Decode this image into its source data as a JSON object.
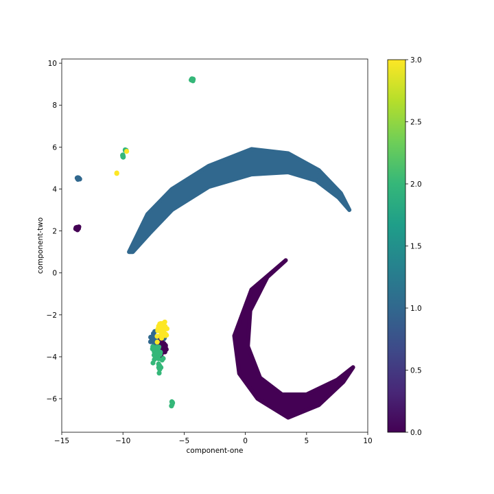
{
  "chart_data": {
    "type": "scatter",
    "title": "",
    "xlabel": "component-one",
    "ylabel": "component-two",
    "xlim": [
      -15,
      10
    ],
    "ylim": [
      -7.6,
      10.2
    ],
    "x_ticks": [
      -15,
      -10,
      -5,
      0,
      5,
      10
    ],
    "x_tick_labels": [
      "−15",
      "−10",
      "−5",
      "0",
      "5",
      "10"
    ],
    "y_ticks": [
      -6,
      -4,
      -2,
      0,
      2,
      4,
      6,
      8,
      10
    ],
    "y_tick_labels": [
      "−6",
      "−4",
      "−2",
      "0",
      "2",
      "4",
      "6",
      "8",
      "10"
    ],
    "grid": false,
    "colormap": "viridis",
    "colorbar": {
      "range": [
        0.0,
        3.0
      ],
      "ticks": [
        0.0,
        0.5,
        1.0,
        1.5,
        2.0,
        2.5,
        3.0
      ],
      "tick_labels": [
        "0.0",
        "0.5",
        "1.0",
        "1.5",
        "2.0",
        "2.5",
        "3.0"
      ],
      "colors": [
        "#440154",
        "#482878",
        "#3e4a89",
        "#31688e",
        "#26828e",
        "#1f9e89",
        "#35b779",
        "#6ece58",
        "#b5de2b",
        "#fde725"
      ]
    },
    "class_colors": {
      "0": "#440154",
      "1": "#31688e",
      "2": "#35b779",
      "3": "#fde725"
    },
    "crescents": [
      {
        "class": 1,
        "description_points": "upper arc, class 1",
        "outer": [
          [
            -9.5,
            1.0
          ],
          [
            -8.0,
            2.8
          ],
          [
            -6.0,
            4.0
          ],
          [
            -3.0,
            5.1
          ],
          [
            0.5,
            5.9
          ],
          [
            3.5,
            5.7
          ],
          [
            6.0,
            4.9
          ],
          [
            7.8,
            3.8
          ],
          [
            8.5,
            3.0
          ]
        ],
        "inner": [
          [
            8.5,
            3.0
          ],
          [
            7.6,
            3.6
          ],
          [
            5.8,
            4.4
          ],
          [
            3.5,
            4.8
          ],
          [
            0.5,
            4.7
          ],
          [
            -3.0,
            4.1
          ],
          [
            -6.0,
            3.0
          ],
          [
            -7.8,
            1.9
          ],
          [
            -9.2,
            1.0
          ]
        ]
      },
      {
        "class": 0,
        "description_points": "lower arc, class 0",
        "outer": [
          [
            3.3,
            0.6
          ],
          [
            0.5,
            -0.8
          ],
          [
            -0.9,
            -3.0
          ],
          [
            -0.5,
            -4.8
          ],
          [
            1.0,
            -6.0
          ],
          [
            3.5,
            -6.9
          ],
          [
            6.0,
            -6.3
          ],
          [
            8.0,
            -5.2
          ],
          [
            8.8,
            -4.5
          ]
        ],
        "inner": [
          [
            8.8,
            -4.5
          ],
          [
            7.5,
            -5.1
          ],
          [
            5.0,
            -5.8
          ],
          [
            3.0,
            -5.8
          ],
          [
            1.2,
            -5.0
          ],
          [
            0.2,
            -3.5
          ],
          [
            0.4,
            -1.8
          ],
          [
            1.8,
            -0.2
          ],
          [
            3.3,
            0.6
          ]
        ]
      }
    ],
    "clusters": [
      {
        "class": 1,
        "x": -13.7,
        "y": 4.5,
        "spread_x": 0.1,
        "spread_y": 0.06,
        "n": 12
      },
      {
        "class": 0,
        "x": -13.7,
        "y": 2.15,
        "spread_x": 0.12,
        "spread_y": 0.08,
        "n": 12
      },
      {
        "class": 2,
        "x": -4.3,
        "y": 9.22,
        "spread_x": 0.08,
        "spread_y": 0.04,
        "n": 8
      },
      {
        "class": 2,
        "x": -9.8,
        "y": 5.85,
        "spread_x": 0.06,
        "spread_y": 0.04,
        "n": 4
      },
      {
        "class": 3,
        "x": -9.7,
        "y": 5.8,
        "spread_x": 0.02,
        "spread_y": 0.02,
        "n": 1
      },
      {
        "class": 2,
        "x": -10.0,
        "y": 5.55,
        "spread_x": 0.06,
        "spread_y": 0.06,
        "n": 5
      },
      {
        "class": 3,
        "x": -10.5,
        "y": 4.75,
        "spread_x": 0.03,
        "spread_y": 0.02,
        "n": 2
      },
      {
        "class": 1,
        "x": -7.3,
        "y": -3.2,
        "spread_x": 0.45,
        "spread_y": 0.3,
        "n": 40
      },
      {
        "class": 0,
        "x": -6.7,
        "y": -3.4,
        "spread_x": 0.25,
        "spread_y": 0.35,
        "n": 30
      },
      {
        "class": 2,
        "x": -7.2,
        "y": -3.9,
        "spread_x": 0.3,
        "spread_y": 0.35,
        "n": 35
      },
      {
        "class": 2,
        "x": -7.0,
        "y": -4.5,
        "spread_x": 0.12,
        "spread_y": 0.15,
        "n": 10
      },
      {
        "class": 3,
        "x": -6.8,
        "y": -2.7,
        "spread_x": 0.35,
        "spread_y": 0.35,
        "n": 45
      },
      {
        "class": 2,
        "x": -6.0,
        "y": -6.2,
        "spread_x": 0.07,
        "spread_y": 0.08,
        "n": 6
      }
    ]
  }
}
